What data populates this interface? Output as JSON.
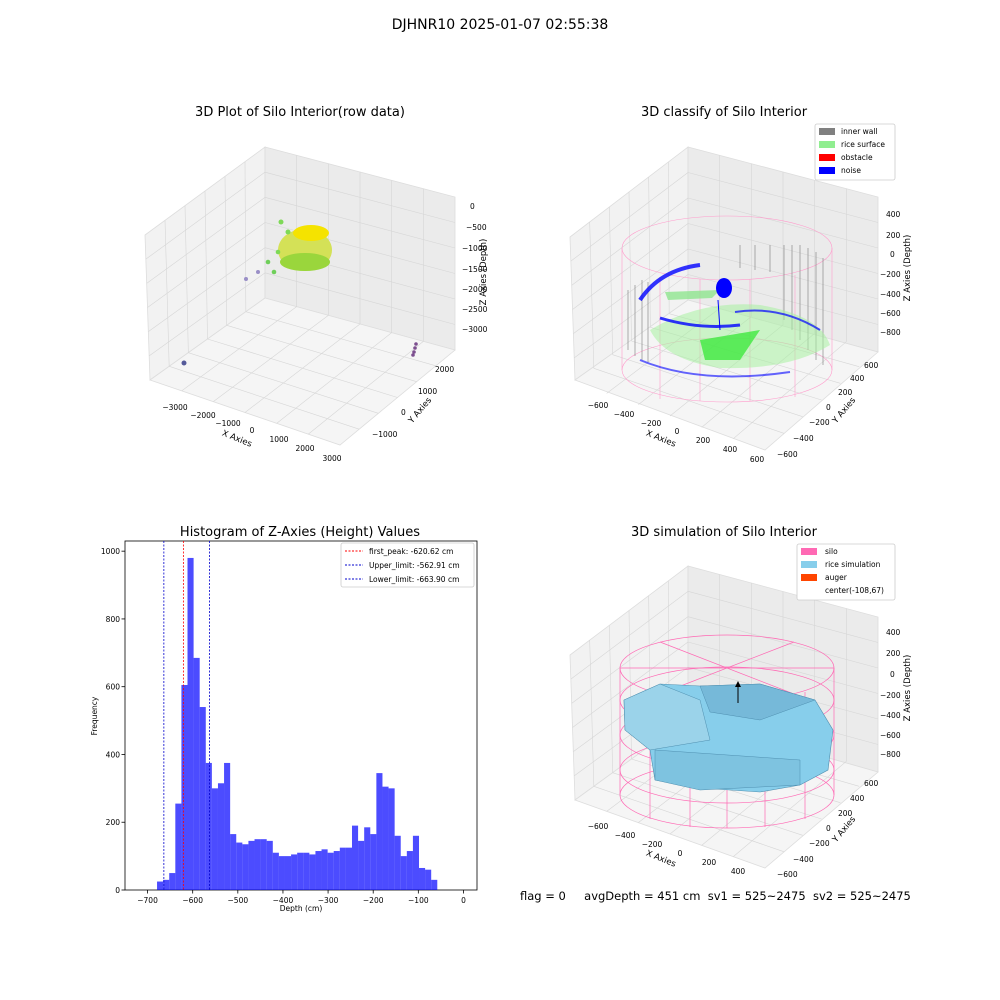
{
  "suptitle": "DJHNR10 2025-01-07 02:55:38",
  "footer": {
    "flag": "flag = 0",
    "avg_depth": "avgDepth = 451 cm",
    "sv1": "sv1 = 525~2475",
    "sv2": "sv2 = 525~2475"
  },
  "panels": {
    "raw": {
      "title": "3D Plot of Silo Interior(row data)",
      "xlabel": "X Axies",
      "ylabel": "Y Axies",
      "zlabel": "Z Axies (Depth)",
      "x_ticks": [
        "−3000",
        "−2000",
        "−1000",
        "0",
        "1000",
        "2000",
        "3000"
      ],
      "y_ticks": [
        "−1000",
        "0",
        "1000",
        "2000"
      ],
      "z_ticks": [
        "0",
        "−500",
        "−1000",
        "−1500",
        "−2000",
        "−2500",
        "−3000"
      ]
    },
    "classify": {
      "title": "3D classify of Silo Interior",
      "xlabel": "X Axies",
      "ylabel": "Y Axies",
      "zlabel": "Z Axies (Depth)",
      "x_ticks": [
        "−600",
        "−400",
        "−200",
        "0",
        "200",
        "400",
        "600"
      ],
      "y_ticks": [
        "−600",
        "−400",
        "−200",
        "0",
        "200",
        "400",
        "600"
      ],
      "z_ticks": [
        "400",
        "200",
        "0",
        "−200",
        "−400",
        "−600",
        "−800"
      ],
      "legend": [
        {
          "label": "inner wall",
          "color": "#808080"
        },
        {
          "label": "rice surface",
          "color": "#90ee90"
        },
        {
          "label": "obstacle",
          "color": "#ff0000"
        },
        {
          "label": "noise",
          "color": "#0000ff"
        }
      ]
    },
    "simulation": {
      "title": "3D simulation of Silo Interior",
      "xlabel": "X Axies",
      "ylabel": "Y Axies",
      "zlabel": "Z Axies (Depth)",
      "x_ticks": [
        "−600",
        "−400",
        "−200",
        "0",
        "200",
        "400"
      ],
      "y_ticks": [
        "−600",
        "−400",
        "−200",
        "0",
        "200",
        "400",
        "600"
      ],
      "z_ticks": [
        "400",
        "200",
        "0",
        "−200",
        "−400",
        "−600",
        "−800"
      ],
      "legend": [
        {
          "label": "silo",
          "color": "#ff69b4"
        },
        {
          "label": "rice simulation",
          "color": "#87ceeb"
        },
        {
          "label": "auger",
          "color": "#ff4500"
        },
        {
          "label": "center(-108,67)",
          "color": ""
        }
      ]
    }
  },
  "chart_data": {
    "type": "bar",
    "title": "Histogram of Z-Axies (Height) Values",
    "xlabel": "Depth (cm)",
    "ylabel": "Frequency",
    "xlim": [
      -750,
      30
    ],
    "ylim": [
      0,
      1030
    ],
    "x_ticks": [
      -700,
      -600,
      -500,
      -400,
      -300,
      -200,
      -100,
      0
    ],
    "x_tick_labels": [
      "−700",
      "−600",
      "−500",
      "−400",
      "−300",
      "−200",
      "−100",
      "0"
    ],
    "y_ticks": [
      0,
      200,
      400,
      600,
      800,
      1000
    ],
    "bar_color": "#0000ff",
    "bin_width": 13.5,
    "bin_left_edges": [
      -679,
      -665.5,
      -652,
      -638.5,
      -625,
      -611.5,
      -598,
      -584.5,
      -571,
      -557.5,
      -544,
      -530.5,
      -517,
      -503.5,
      -490,
      -476.5,
      -463,
      -449.5,
      -436,
      -422.5,
      -409,
      -395.5,
      -382,
      -368.5,
      -355,
      -341.5,
      -328,
      -314.5,
      -301,
      -287.5,
      -274,
      -260.5,
      -247,
      -233.5,
      -220,
      -206.5,
      -193,
      -179.5,
      -166,
      -152.5,
      -139,
      -125.5,
      -112,
      -98.5,
      -85,
      -71.5,
      -58,
      -44.5,
      -31,
      -17.5,
      -4
    ],
    "values": [
      25,
      30,
      50,
      255,
      605,
      980,
      685,
      540,
      375,
      300,
      315,
      375,
      165,
      140,
      135,
      145,
      150,
      150,
      145,
      110,
      100,
      100,
      105,
      110,
      110,
      105,
      115,
      120,
      110,
      115,
      125,
      125,
      190,
      145,
      185,
      165,
      345,
      305,
      300,
      160,
      100,
      115,
      160,
      65,
      60,
      30,
      0,
      0,
      0,
      0,
      0
    ],
    "vlines": [
      {
        "label": "first_peak: -620.62 cm",
        "x": -620.62,
        "color": "#ff0000"
      },
      {
        "label": "Upper_limit: -562.91 cm",
        "x": -562.91,
        "color": "#0000cc"
      },
      {
        "label": "Lower_limit: -663.90 cm",
        "x": -663.9,
        "color": "#0000cc"
      }
    ],
    "legend_position": "top-right"
  }
}
